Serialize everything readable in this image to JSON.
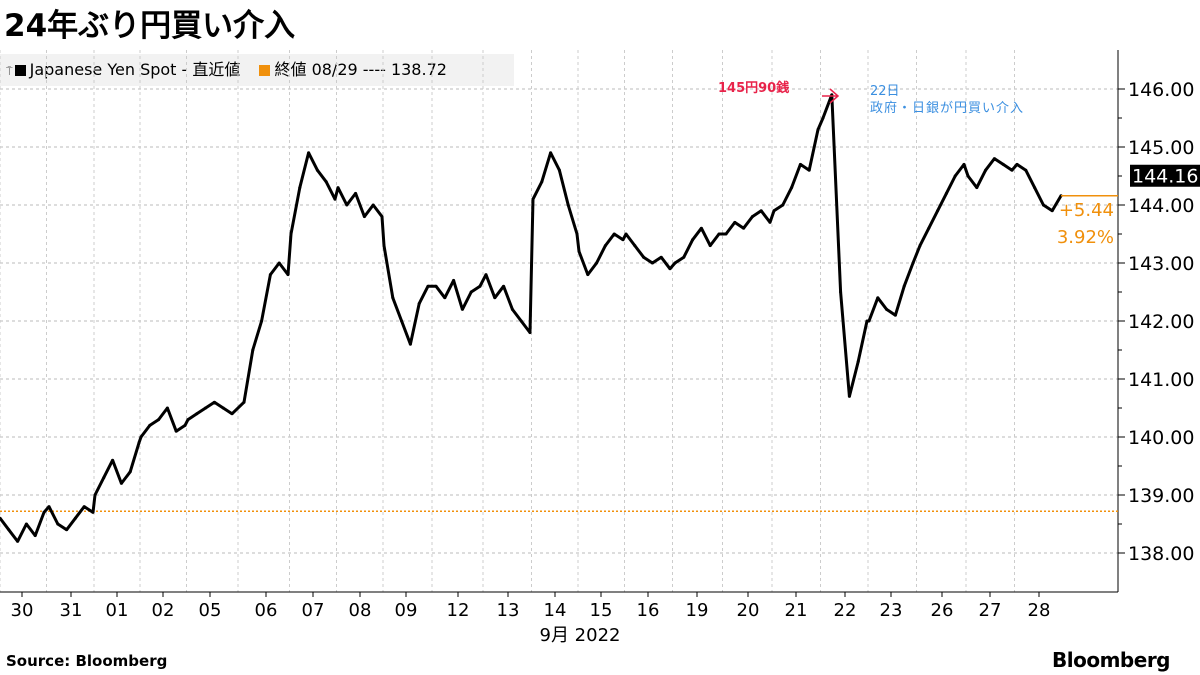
{
  "title": "24年ぶり円買い介入",
  "legend": {
    "series_label": "Japanese Yen Spot - 直近値",
    "ref_label": "終値 08/29 ---- 138.72"
  },
  "source": "Source:  Bloomberg",
  "logo": "Bloomberg",
  "colors": {
    "series": "#000000",
    "reference": "#f0900c",
    "peak_annotation": "#e8234a",
    "event_annotation": "#3b8fe0"
  },
  "chart_data": {
    "type": "line",
    "xlabel": "9月 2022",
    "ylim": [
      137.4,
      146.6
    ],
    "yticks": [
      "138.00",
      "139.00",
      "140.00",
      "141.00",
      "142.00",
      "143.00",
      "144.00",
      "145.00",
      "146.00"
    ],
    "grid": true,
    "legend_position": "top-left",
    "categories": [
      "30",
      "31",
      "01",
      "02",
      "05",
      "06",
      "07",
      "08",
      "09",
      "12",
      "13",
      "14",
      "15",
      "16",
      "19",
      "20",
      "21",
      "22",
      "23",
      "26",
      "27",
      "28"
    ],
    "series": [
      {
        "name": "Japanese Yen Spot - 直近値",
        "values": [
          [
            138.6,
            138.4,
            138.2,
            138.5,
            138.3,
            138.7
          ],
          [
            138.8,
            138.5,
            138.4,
            138.6,
            138.8,
            138.7
          ],
          [
            139.0,
            139.3,
            139.6,
            139.2,
            139.4,
            139.9
          ],
          [
            140.0,
            140.2,
            140.3,
            140.5,
            140.1,
            140.2
          ],
          [
            140.3,
            140.4,
            140.5,
            140.6,
            140.5,
            140.4
          ],
          [
            140.6,
            141.5,
            142.0,
            142.8,
            143.0,
            142.8
          ],
          [
            143.5,
            144.3,
            144.9,
            144.6,
            144.4,
            144.1
          ],
          [
            144.3,
            144.0,
            144.2,
            143.8,
            144.0,
            143.8
          ],
          [
            143.3,
            142.4,
            142.0,
            141.6,
            142.3,
            142.6
          ],
          [
            142.6,
            142.4,
            142.7,
            142.2,
            142.5,
            142.6
          ],
          [
            142.8,
            142.4,
            142.6,
            142.2,
            142.0,
            141.8
          ],
          [
            144.1,
            144.4,
            144.9,
            144.6,
            144.0,
            143.5
          ],
          [
            143.2,
            142.8,
            143.0,
            143.3,
            143.5,
            143.4
          ],
          [
            143.5,
            143.3,
            143.1,
            143.0,
            143.1,
            142.9
          ],
          [
            143.0,
            143.1,
            143.4,
            143.6,
            143.3,
            143.5
          ],
          [
            143.5,
            143.7,
            143.6,
            143.8,
            143.9,
            143.7
          ],
          [
            143.9,
            144.0,
            144.3,
            144.7,
            144.6,
            145.3
          ],
          [
            145.5,
            145.9,
            142.5,
            140.7,
            141.3,
            142.0
          ],
          [
            142.0,
            142.4,
            142.2,
            142.1,
            142.6,
            143.0
          ],
          [
            143.3,
            143.6,
            143.9,
            144.2,
            144.5,
            144.7
          ],
          [
            144.5,
            144.3,
            144.6,
            144.8,
            144.7,
            144.6
          ],
          [
            144.7,
            144.6,
            144.3,
            144.0,
            143.9,
            144.16
          ]
        ]
      }
    ],
    "reference_line": {
      "label": "終値 08/29",
      "value": 138.72
    },
    "last_value": "144.16",
    "change": "+5.44",
    "change_pct": "3.92%",
    "annotations": {
      "peak": "145円90銭",
      "event_date": "22日",
      "event_text": "政府・日銀が円買い介入"
    }
  }
}
